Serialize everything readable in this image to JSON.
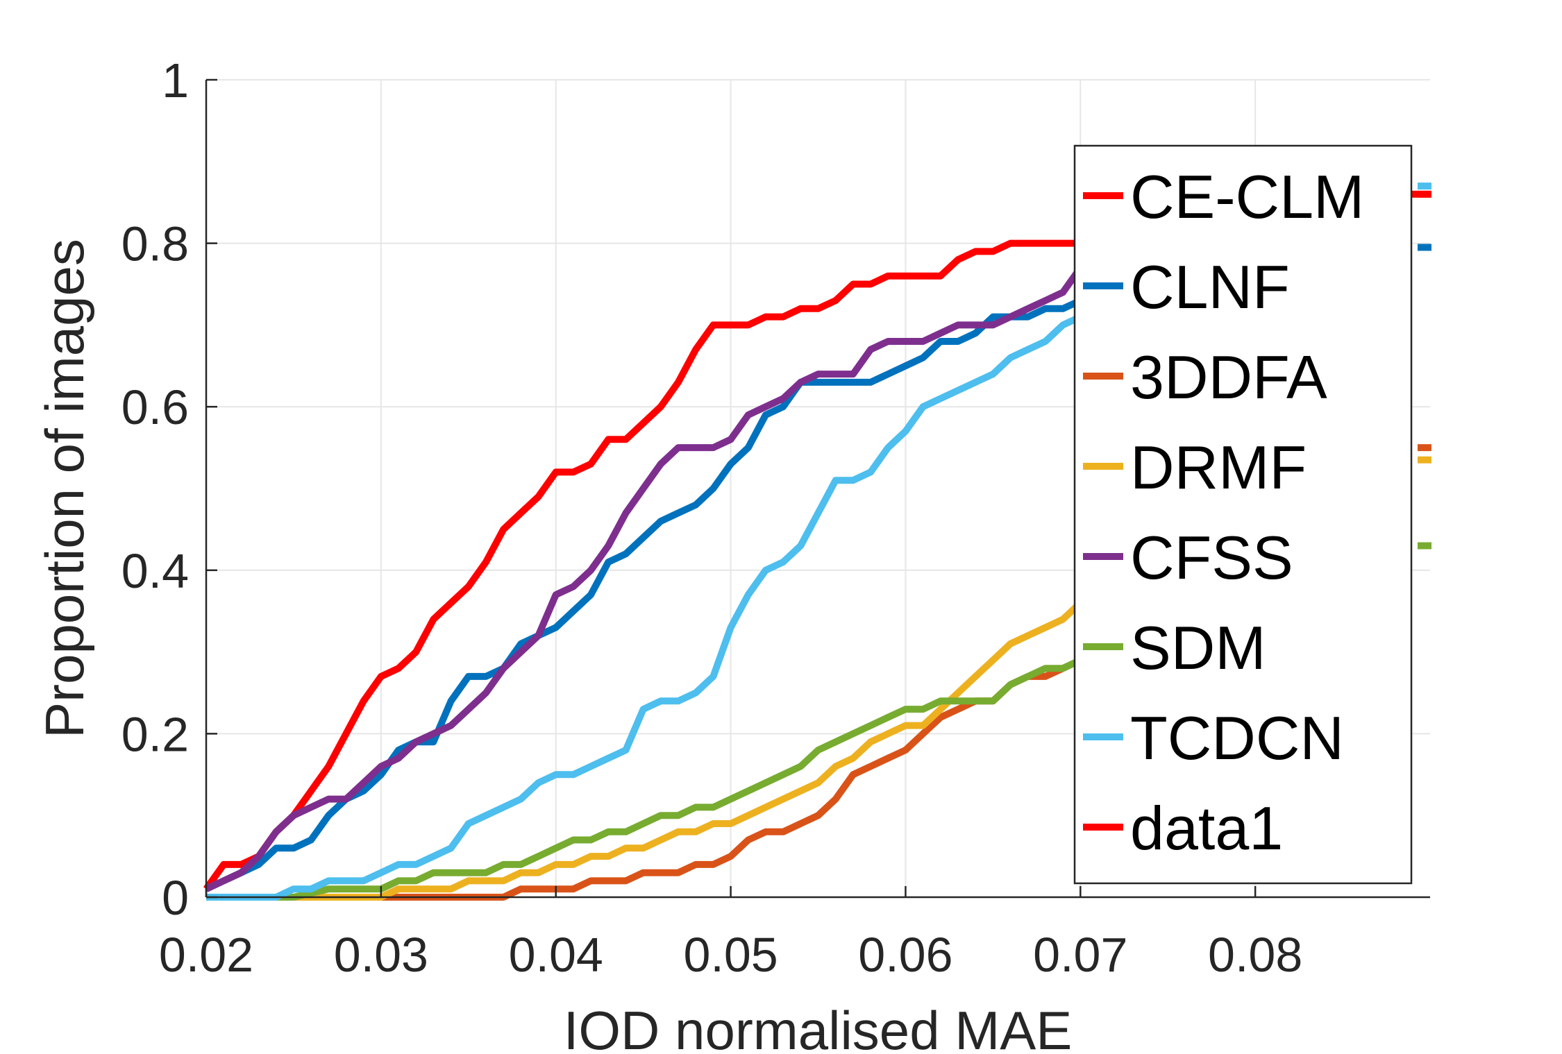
{
  "chart_data": {
    "type": "line",
    "xlabel": "IOD normalised MAE",
    "ylabel": "Proportion of images",
    "xlim": [
      0.02,
      0.09
    ],
    "ylim": [
      0,
      1
    ],
    "xticks": [
      "0.02",
      "0.03",
      "0.04",
      "0.05",
      "0.06",
      "0.07",
      "0.08"
    ],
    "yticks": [
      "0",
      "0.2",
      "0.4",
      "0.6",
      "0.8",
      "1"
    ],
    "grid": true,
    "legend_position": "top-right",
    "series": [
      {
        "name": "CE-CLM",
        "color": "#ff0000",
        "x": [
          0.02,
          0.021,
          0.022,
          0.023,
          0.024,
          0.025,
          0.026,
          0.027,
          0.028,
          0.029,
          0.03,
          0.031,
          0.032,
          0.033,
          0.034,
          0.035,
          0.036,
          0.037,
          0.038,
          0.039,
          0.04,
          0.041,
          0.042,
          0.043,
          0.044,
          0.045,
          0.046,
          0.047,
          0.048,
          0.049,
          0.05,
          0.051,
          0.052,
          0.053,
          0.054,
          0.055,
          0.056,
          0.057,
          0.058,
          0.059,
          0.06,
          0.061,
          0.062,
          0.063,
          0.064,
          0.065,
          0.066,
          0.067,
          0.068,
          0.069,
          0.07
        ],
        "y": [
          0.01,
          0.04,
          0.04,
          0.05,
          0.08,
          0.1,
          0.13,
          0.16,
          0.2,
          0.24,
          0.27,
          0.28,
          0.3,
          0.34,
          0.36,
          0.38,
          0.41,
          0.45,
          0.47,
          0.49,
          0.52,
          0.52,
          0.53,
          0.56,
          0.56,
          0.58,
          0.6,
          0.63,
          0.67,
          0.7,
          0.7,
          0.7,
          0.71,
          0.71,
          0.72,
          0.72,
          0.73,
          0.75,
          0.75,
          0.76,
          0.76,
          0.76,
          0.76,
          0.78,
          0.79,
          0.79,
          0.8,
          0.8,
          0.8,
          0.8,
          0.8
        ]
      },
      {
        "name": "CLNF",
        "color": "#0072bd",
        "x": [
          0.02,
          0.021,
          0.022,
          0.023,
          0.024,
          0.025,
          0.026,
          0.027,
          0.028,
          0.029,
          0.03,
          0.031,
          0.032,
          0.033,
          0.034,
          0.035,
          0.036,
          0.037,
          0.038,
          0.039,
          0.04,
          0.041,
          0.042,
          0.043,
          0.044,
          0.045,
          0.046,
          0.047,
          0.048,
          0.049,
          0.05,
          0.051,
          0.052,
          0.053,
          0.054,
          0.055,
          0.056,
          0.057,
          0.058,
          0.059,
          0.06,
          0.061,
          0.062,
          0.063,
          0.064,
          0.065,
          0.066,
          0.067,
          0.068,
          0.069,
          0.07
        ],
        "y": [
          0.01,
          0.02,
          0.03,
          0.04,
          0.06,
          0.06,
          0.07,
          0.1,
          0.12,
          0.13,
          0.15,
          0.18,
          0.19,
          0.19,
          0.24,
          0.27,
          0.27,
          0.28,
          0.31,
          0.32,
          0.33,
          0.35,
          0.37,
          0.41,
          0.42,
          0.44,
          0.46,
          0.47,
          0.48,
          0.5,
          0.53,
          0.55,
          0.59,
          0.6,
          0.63,
          0.63,
          0.63,
          0.63,
          0.63,
          0.64,
          0.65,
          0.66,
          0.68,
          0.68,
          0.69,
          0.71,
          0.71,
          0.71,
          0.72,
          0.72,
          0.73
        ]
      },
      {
        "name": "3DDFA",
        "color": "#d95319",
        "x": [
          0.02,
          0.025,
          0.03,
          0.035,
          0.037,
          0.038,
          0.039,
          0.04,
          0.041,
          0.042,
          0.043,
          0.044,
          0.045,
          0.046,
          0.047,
          0.048,
          0.049,
          0.05,
          0.051,
          0.052,
          0.053,
          0.054,
          0.055,
          0.056,
          0.057,
          0.058,
          0.059,
          0.06,
          0.061,
          0.062,
          0.063,
          0.064,
          0.065,
          0.066,
          0.067,
          0.068,
          0.069,
          0.07
        ],
        "y": [
          0,
          0,
          0,
          0,
          0,
          0.01,
          0.01,
          0.01,
          0.01,
          0.02,
          0.02,
          0.02,
          0.03,
          0.03,
          0.03,
          0.04,
          0.04,
          0.05,
          0.07,
          0.08,
          0.08,
          0.09,
          0.1,
          0.12,
          0.15,
          0.16,
          0.17,
          0.18,
          0.2,
          0.22,
          0.23,
          0.24,
          0.24,
          0.26,
          0.27,
          0.27,
          0.28,
          0.29
        ]
      },
      {
        "name": "DRMF",
        "color": "#edb120",
        "x": [
          0.02,
          0.025,
          0.03,
          0.031,
          0.032,
          0.033,
          0.034,
          0.035,
          0.036,
          0.037,
          0.038,
          0.039,
          0.04,
          0.041,
          0.042,
          0.043,
          0.044,
          0.045,
          0.046,
          0.047,
          0.048,
          0.049,
          0.05,
          0.051,
          0.052,
          0.053,
          0.054,
          0.055,
          0.056,
          0.057,
          0.058,
          0.059,
          0.06,
          0.061,
          0.062,
          0.063,
          0.064,
          0.065,
          0.066,
          0.067,
          0.068,
          0.069,
          0.07
        ],
        "y": [
          0,
          0,
          0,
          0.01,
          0.01,
          0.01,
          0.01,
          0.02,
          0.02,
          0.02,
          0.03,
          0.03,
          0.04,
          0.04,
          0.05,
          0.05,
          0.06,
          0.06,
          0.07,
          0.08,
          0.08,
          0.09,
          0.09,
          0.1,
          0.11,
          0.12,
          0.13,
          0.14,
          0.16,
          0.17,
          0.19,
          0.2,
          0.21,
          0.21,
          0.23,
          0.25,
          0.27,
          0.29,
          0.31,
          0.32,
          0.33,
          0.34,
          0.36
        ]
      },
      {
        "name": "CFSS",
        "color": "#7e2f8e",
        "x": [
          0.02,
          0.021,
          0.022,
          0.023,
          0.024,
          0.025,
          0.026,
          0.027,
          0.028,
          0.029,
          0.03,
          0.031,
          0.032,
          0.033,
          0.034,
          0.035,
          0.036,
          0.037,
          0.038,
          0.039,
          0.04,
          0.041,
          0.042,
          0.043,
          0.044,
          0.045,
          0.046,
          0.047,
          0.048,
          0.049,
          0.05,
          0.051,
          0.052,
          0.053,
          0.054,
          0.055,
          0.056,
          0.057,
          0.058,
          0.059,
          0.06,
          0.061,
          0.062,
          0.063,
          0.064,
          0.065,
          0.066,
          0.067,
          0.068,
          0.069,
          0.07
        ],
        "y": [
          0.01,
          0.02,
          0.03,
          0.05,
          0.08,
          0.1,
          0.11,
          0.12,
          0.12,
          0.14,
          0.16,
          0.17,
          0.19,
          0.2,
          0.21,
          0.23,
          0.25,
          0.28,
          0.3,
          0.32,
          0.37,
          0.38,
          0.4,
          0.43,
          0.47,
          0.5,
          0.53,
          0.55,
          0.55,
          0.55,
          0.56,
          0.59,
          0.6,
          0.61,
          0.63,
          0.64,
          0.64,
          0.64,
          0.67,
          0.68,
          0.68,
          0.68,
          0.69,
          0.7,
          0.7,
          0.7,
          0.71,
          0.72,
          0.73,
          0.74,
          0.77
        ]
      },
      {
        "name": "SDM",
        "color": "#77ac30",
        "x": [
          0.02,
          0.025,
          0.027,
          0.028,
          0.029,
          0.03,
          0.031,
          0.032,
          0.033,
          0.034,
          0.035,
          0.036,
          0.037,
          0.038,
          0.039,
          0.04,
          0.041,
          0.042,
          0.043,
          0.044,
          0.045,
          0.046,
          0.047,
          0.048,
          0.049,
          0.05,
          0.051,
          0.052,
          0.053,
          0.054,
          0.055,
          0.056,
          0.057,
          0.058,
          0.059,
          0.06,
          0.061,
          0.062,
          0.063,
          0.064,
          0.065,
          0.066,
          0.067,
          0.068,
          0.069,
          0.07
        ],
        "y": [
          0,
          0,
          0.01,
          0.01,
          0.01,
          0.01,
          0.02,
          0.02,
          0.03,
          0.03,
          0.03,
          0.03,
          0.04,
          0.04,
          0.05,
          0.06,
          0.07,
          0.07,
          0.08,
          0.08,
          0.09,
          0.1,
          0.1,
          0.11,
          0.11,
          0.12,
          0.13,
          0.14,
          0.15,
          0.16,
          0.18,
          0.19,
          0.2,
          0.21,
          0.22,
          0.23,
          0.23,
          0.24,
          0.24,
          0.24,
          0.24,
          0.26,
          0.27,
          0.28,
          0.28,
          0.29
        ]
      },
      {
        "name": "TCDCN",
        "color": "#4dbeee",
        "x": [
          0.02,
          0.024,
          0.025,
          0.026,
          0.027,
          0.028,
          0.029,
          0.03,
          0.031,
          0.032,
          0.033,
          0.034,
          0.035,
          0.036,
          0.037,
          0.038,
          0.039,
          0.04,
          0.041,
          0.042,
          0.043,
          0.044,
          0.045,
          0.046,
          0.047,
          0.048,
          0.049,
          0.05,
          0.051,
          0.052,
          0.053,
          0.054,
          0.055,
          0.056,
          0.057,
          0.058,
          0.059,
          0.06,
          0.061,
          0.062,
          0.063,
          0.064,
          0.065,
          0.066,
          0.067,
          0.068,
          0.069,
          0.07
        ],
        "y": [
          0,
          0,
          0.01,
          0.01,
          0.02,
          0.02,
          0.02,
          0.03,
          0.04,
          0.04,
          0.05,
          0.06,
          0.09,
          0.1,
          0.11,
          0.12,
          0.14,
          0.15,
          0.15,
          0.16,
          0.17,
          0.18,
          0.23,
          0.24,
          0.24,
          0.25,
          0.27,
          0.33,
          0.37,
          0.4,
          0.41,
          0.43,
          0.47,
          0.51,
          0.51,
          0.52,
          0.55,
          0.57,
          0.6,
          0.61,
          0.62,
          0.63,
          0.64,
          0.66,
          0.67,
          0.68,
          0.7,
          0.71
        ]
      },
      {
        "name": "data1",
        "color": "#ff0000",
        "x": [
          0.0883,
          0.09
        ],
        "y": [
          0.86,
          0.86
        ]
      }
    ],
    "edge_stubs": [
      {
        "series": "TCDCN",
        "y": 0.87,
        "color": "#4dbeee"
      },
      {
        "series": "CE-CLM",
        "y": 0.86,
        "color": "#ff0000"
      },
      {
        "series": "CLNF",
        "y": 0.795,
        "color": "#0072bd"
      },
      {
        "series": "3DDFA",
        "y": 0.55,
        "color": "#d95319"
      },
      {
        "series": "DRMF",
        "y": 0.535,
        "color": "#edb120"
      },
      {
        "series": "SDM",
        "y": 0.43,
        "color": "#77ac30"
      }
    ]
  }
}
